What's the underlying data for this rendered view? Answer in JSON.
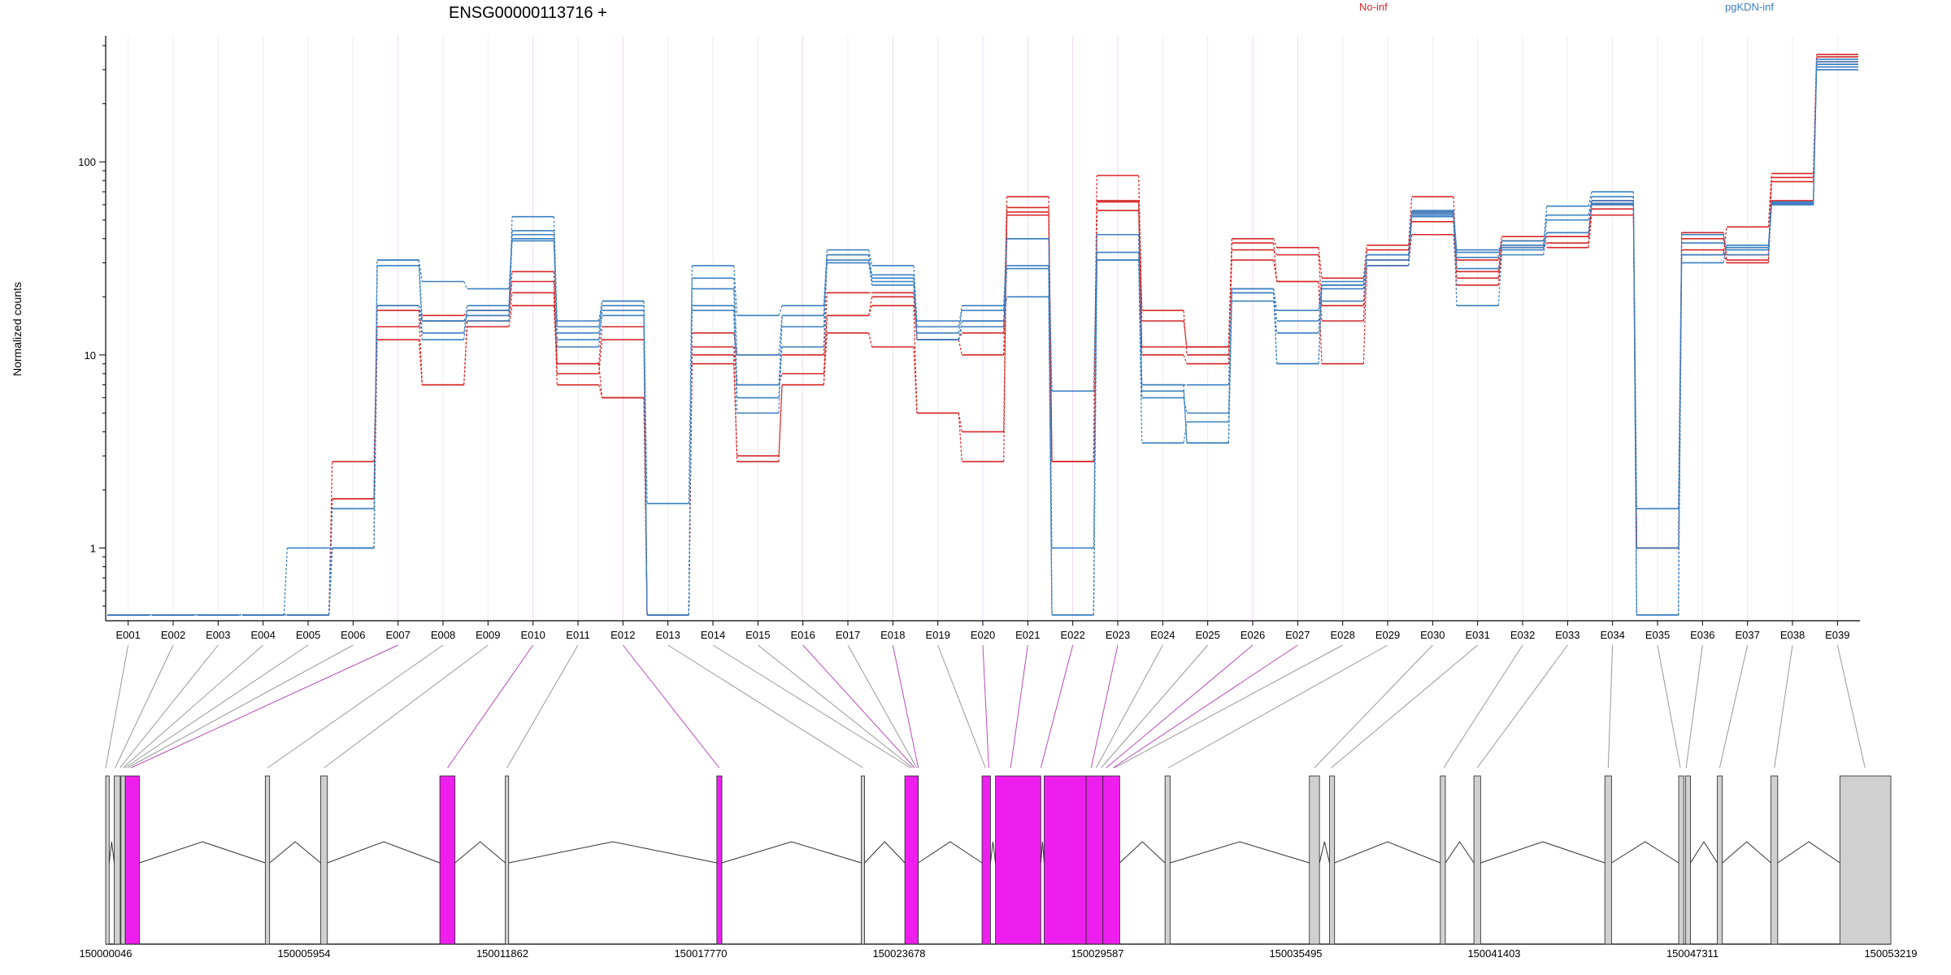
{
  "chart_data": {
    "type": "line",
    "title": "ENSG00000113716 +",
    "ylabel": "Normalized counts",
    "yscale": "log",
    "ylim": [
      0.42,
      450
    ],
    "y_ticks": [
      1,
      10,
      100
    ],
    "y_tick_labels": [
      "1",
      "10",
      "100"
    ],
    "grid": true,
    "legend": {
      "placement": "top",
      "entries": [
        {
          "label": "No-inf",
          "color": "#d62728"
        },
        {
          "label": "pgKDN-inf",
          "color": "#3a7fc0"
        }
      ]
    },
    "exons": [
      "E001",
      "E002",
      "E003",
      "E004",
      "E005",
      "E006",
      "E007",
      "E008",
      "E009",
      "E010",
      "E011",
      "E012",
      "E013",
      "E014",
      "E015",
      "E016",
      "E017",
      "E018",
      "E019",
      "E020",
      "E021",
      "E022",
      "E023",
      "E024",
      "E025",
      "E026",
      "E027",
      "E028",
      "E029",
      "E030",
      "E031",
      "E032",
      "E033",
      "E034",
      "E035",
      "E036",
      "E037",
      "E038",
      "E039"
    ],
    "highlighted_exons": [
      "E007",
      "E010",
      "E012",
      "E016",
      "E018",
      "E020",
      "E021",
      "E022",
      "E023",
      "E026",
      "E027"
    ],
    "series": [
      {
        "group": "No-inf",
        "color": "#d62728",
        "values": [
          0.45,
          0.45,
          0.45,
          0.45,
          0.45,
          1.8,
          18,
          15,
          16,
          27,
          9,
          14,
          0.45,
          13,
          10,
          10,
          21,
          21,
          12,
          13,
          66,
          2.8,
          56,
          11,
          11,
          40,
          36,
          25,
          37,
          66,
          27,
          39,
          41,
          60,
          1.0,
          43,
          31,
          83,
          350
        ]
      },
      {
        "group": "No-inf",
        "color": "#d62728",
        "values": [
          0.45,
          0.45,
          0.45,
          0.45,
          0.45,
          2.8,
          14,
          16,
          17,
          24,
          8,
          12,
          0.45,
          11,
          7,
          8,
          16,
          18,
          5,
          4,
          58,
          2.8,
          62,
          15,
          11,
          35,
          33,
          18,
          35,
          55,
          31,
          41,
          41,
          57,
          1.0,
          40,
          33,
          79,
          330
        ]
      },
      {
        "group": "No-inf",
        "color": "#d62728",
        "values": [
          0.45,
          0.45,
          0.45,
          0.45,
          0.45,
          1.0,
          12,
          7,
          15,
          21,
          7,
          6,
          0.45,
          10,
          2.8,
          7,
          13,
          11,
          5,
          2.8,
          55,
          2.8,
          85,
          17,
          10,
          31,
          24,
          15,
          31,
          49,
          25,
          37,
          36,
          53,
          1.0,
          35,
          30,
          63,
          320
        ]
      },
      {
        "group": "No-inf",
        "color": "#d62728",
        "values": [
          0.45,
          0.45,
          0.45,
          0.45,
          0.45,
          1.8,
          17,
          7,
          14,
          18,
          9,
          6,
          0.45,
          9,
          3,
          7,
          16,
          20,
          12,
          10,
          53,
          2.8,
          63,
          10,
          9,
          38,
          24,
          9,
          29,
          42,
          23,
          36,
          38,
          63,
          1.0,
          33,
          46,
          87,
          360
        ]
      },
      {
        "group": "pgKDN-inf",
        "color": "#3a7fc0",
        "values": [
          0.45,
          0.45,
          0.45,
          0.45,
          0.45,
          1.0,
          31,
          15,
          16,
          52,
          15,
          19,
          1.7,
          29,
          16,
          18,
          35,
          29,
          15,
          15,
          40,
          6.5,
          42,
          7,
          7,
          22,
          17,
          23,
          33,
          55,
          35,
          37,
          59,
          70,
          1.6,
          42,
          35,
          60,
          330
        ]
      },
      {
        "group": "pgKDN-inf",
        "color": "#3a7fc0",
        "values": [
          0.45,
          0.45,
          0.45,
          0.45,
          1.0,
          1.0,
          31,
          24,
          22,
          39,
          14,
          18,
          0.45,
          25,
          10,
          16,
          33,
          26,
          14,
          18,
          40,
          1.0,
          34,
          6,
          5,
          21,
          15,
          19,
          31,
          52,
          32,
          39,
          53,
          66,
          1.0,
          38,
          36,
          61,
          340
        ]
      },
      {
        "group": "pgKDN-inf",
        "color": "#3a7fc0",
        "values": [
          0.45,
          0.45,
          0.45,
          0.45,
          0.45,
          1.6,
          29,
          13,
          18,
          42,
          12,
          16,
          0.45,
          22,
          7,
          14,
          30,
          23,
          13,
          17,
          29,
          0.45,
          31,
          3.5,
          4.5,
          19,
          13,
          23,
          29,
          53,
          28,
          35,
          43,
          60,
          0.45,
          33,
          36,
          62,
          310
        ]
      },
      {
        "group": "pgKDN-inf",
        "color": "#3a7fc0",
        "values": [
          0.45,
          0.45,
          0.45,
          0.45,
          0.45,
          1.0,
          18,
          12,
          17,
          44,
          11,
          17,
          0.45,
          18,
          6,
          11,
          33,
          24,
          12,
          14,
          28,
          0.45,
          31,
          7,
          3.5,
          21,
          9,
          24,
          33,
          56,
          18,
          33,
          43,
          63,
          0.45,
          33,
          33,
          60,
          300
        ]
      },
      {
        "group": "pgKDN-inf",
        "color": "#3a7fc0",
        "values": [
          0.45,
          0.45,
          0.45,
          0.45,
          0.45,
          1.0,
          18,
          15,
          15,
          40,
          13,
          19,
          0.45,
          17,
          5,
          16,
          31,
          25,
          12,
          15,
          20,
          0.45,
          42,
          6.5,
          3.5,
          22,
          9,
          22,
          33,
          54,
          34,
          36,
          50,
          61,
          0.45,
          30,
          37,
          61,
          320
        ]
      }
    ],
    "genomic_coordinates": {
      "start": 150000046,
      "end": 150053219,
      "tick_labels": [
        "150000046",
        "150005954",
        "150011862",
        "150017770",
        "150023678",
        "150029587",
        "150035495",
        "150041403",
        "150047311",
        "150053219"
      ],
      "exon_blocks": [
        {
          "start": 150000046,
          "end": 150000150,
          "highlight": false
        },
        {
          "start": 150000300,
          "end": 150000480,
          "highlight": false
        },
        {
          "start": 150000500,
          "end": 150000630,
          "highlight": false
        },
        {
          "start": 150000630,
          "end": 150001050,
          "highlight": true
        },
        {
          "start": 150004800,
          "end": 150004930,
          "highlight": false
        },
        {
          "start": 150006450,
          "end": 150006650,
          "highlight": false
        },
        {
          "start": 150010000,
          "end": 150010450,
          "highlight": true
        },
        {
          "start": 150011950,
          "end": 150012050,
          "highlight": false
        },
        {
          "start": 150018250,
          "end": 150018400,
          "highlight": true
        },
        {
          "start": 150022550,
          "end": 150022650,
          "highlight": false
        },
        {
          "start": 150023850,
          "end": 150024250,
          "highlight": true
        },
        {
          "start": 150026150,
          "end": 150026400,
          "highlight": true
        },
        {
          "start": 150026550,
          "end": 150027900,
          "highlight": true
        },
        {
          "start": 150028000,
          "end": 150029250,
          "highlight": true
        },
        {
          "start": 150029250,
          "end": 150029750,
          "highlight": true
        },
        {
          "start": 150029750,
          "end": 150030250,
          "highlight": true
        },
        {
          "start": 150031600,
          "end": 150031750,
          "highlight": false
        },
        {
          "start": 150035900,
          "end": 150036200,
          "highlight": false
        },
        {
          "start": 150036500,
          "end": 150036650,
          "highlight": false
        },
        {
          "start": 150039800,
          "end": 150039950,
          "highlight": false
        },
        {
          "start": 150040800,
          "end": 150041000,
          "highlight": false
        },
        {
          "start": 150044700,
          "end": 150044900,
          "highlight": false
        },
        {
          "start": 150046900,
          "end": 150047050,
          "highlight": false
        },
        {
          "start": 150047100,
          "end": 150047250,
          "highlight": false
        },
        {
          "start": 150048050,
          "end": 150048200,
          "highlight": false
        },
        {
          "start": 150049650,
          "end": 150049850,
          "highlight": false
        },
        {
          "start": 150051700,
          "end": 150053219,
          "highlight": false
        }
      ],
      "exon_anchor_coords": [
        150000046,
        150000330,
        150000470,
        150000560,
        150000620,
        150000700,
        150000800,
        150004870,
        150006550,
        150010230,
        150012000,
        150018320,
        150022600,
        150024020,
        150024080,
        150024140,
        150024200,
        150024250,
        150026250,
        150026350,
        150027000,
        150027900,
        150029400,
        150029550,
        150029700,
        150029850,
        150030050,
        150030100,
        150031700,
        150036050,
        150036550,
        150039900,
        150040900,
        150044800,
        150046950,
        150047120,
        150048120,
        150049750,
        150052450
      ]
    }
  }
}
